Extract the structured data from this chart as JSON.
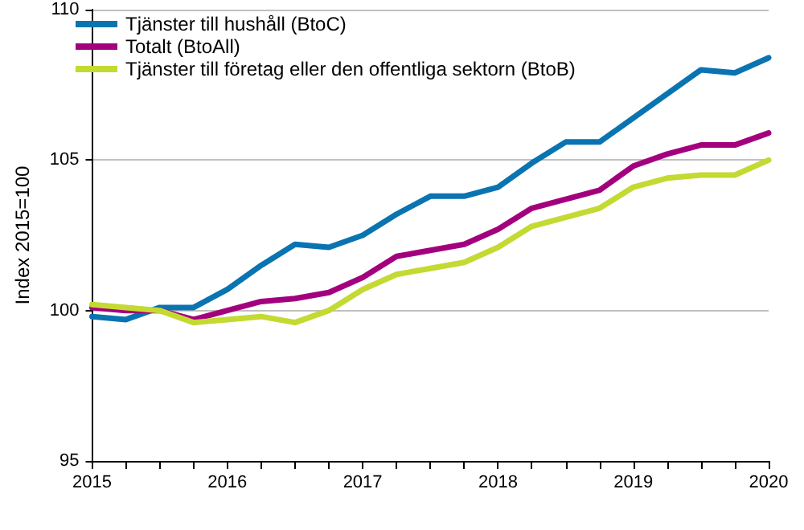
{
  "chart_data": {
    "type": "line",
    "ylabel": "Index 2015=100",
    "x": [
      2015,
      2015.25,
      2015.5,
      2015.75,
      2016,
      2016.25,
      2016.5,
      2016.75,
      2017,
      2017.25,
      2017.5,
      2017.75,
      2018,
      2018.25,
      2018.5,
      2018.75,
      2019,
      2019.25,
      2019.5,
      2019.75,
      2020
    ],
    "series": [
      {
        "name": "Tjänster till hushåll (BtoC)",
        "color": "#0a74b0",
        "values": [
          99.8,
          99.7,
          100.1,
          100.1,
          100.7,
          101.5,
          102.2,
          102.1,
          102.5,
          103.2,
          103.8,
          103.8,
          104.1,
          104.9,
          105.6,
          105.6,
          106.4,
          107.2,
          108.0,
          107.9,
          108.4
        ]
      },
      {
        "name": "Totalt (BtoAll)",
        "color": "#a3007e",
        "values": [
          100.1,
          100.0,
          100.0,
          99.7,
          100.0,
          100.3,
          100.4,
          100.6,
          101.1,
          101.8,
          102.0,
          102.2,
          102.7,
          103.4,
          103.7,
          104.0,
          104.8,
          105.2,
          105.5,
          105.5,
          105.9
        ]
      },
      {
        "name": "Tjänster till företag eller den offentliga sektorn (BtoB)",
        "color": "#c4d932",
        "values": [
          100.2,
          100.1,
          100.0,
          99.6,
          99.7,
          99.8,
          99.6,
          100.0,
          100.7,
          101.2,
          101.4,
          101.6,
          102.1,
          102.8,
          103.1,
          103.4,
          104.1,
          104.4,
          104.5,
          104.5,
          105.0
        ]
      }
    ],
    "xlim": [
      2015,
      2020
    ],
    "xticks": [
      2015,
      {
        "value": 2015.25,
        "label": null
      },
      {
        "value": 2015.5,
        "label": null
      },
      {
        "value": 2015.75,
        "label": null
      },
      2016,
      {
        "value": 2016.25,
        "label": null
      },
      {
        "value": 2016.5,
        "label": null
      },
      {
        "value": 2016.75,
        "label": null
      },
      2017,
      {
        "value": 2017.25,
        "label": null
      },
      {
        "value": 2017.5,
        "label": null
      },
      {
        "value": 2017.75,
        "label": null
      },
      2018,
      {
        "value": 2018.25,
        "label": null
      },
      {
        "value": 2018.5,
        "label": null
      },
      {
        "value": 2018.75,
        "label": null
      },
      2019,
      {
        "value": 2019.25,
        "label": null
      },
      {
        "value": 2019.5,
        "label": null
      },
      {
        "value": 2019.75,
        "label": null
      },
      2020
    ],
    "ylim": [
      95,
      110
    ],
    "yticks": [
      95,
      100,
      105,
      110
    ],
    "grid": "y",
    "legend": "top left",
    "marker": "none",
    "line_style": "solid"
  }
}
